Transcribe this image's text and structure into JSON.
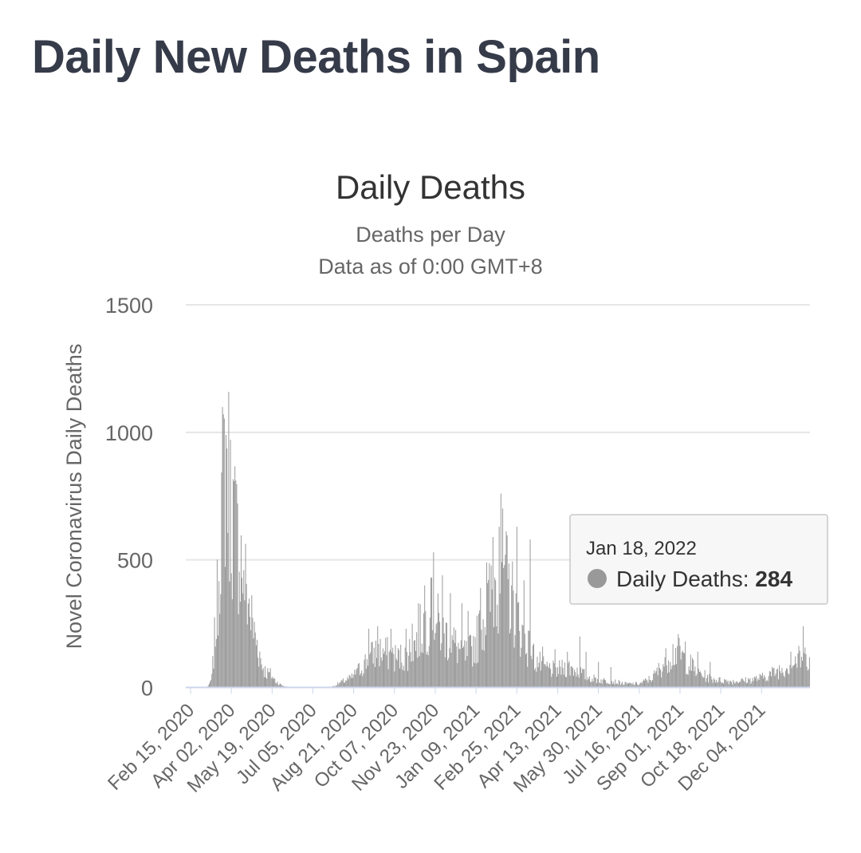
{
  "page": {
    "title": "Daily New Deaths in Spain"
  },
  "colors": {
    "bar": "#999999",
    "grid": "#e6e6e6",
    "baseline": "#cdd6ea",
    "title": "#363b4a",
    "text": "#333333",
    "muted": "#666666"
  },
  "chart_data": {
    "type": "bar",
    "title": "Daily Deaths",
    "subtitle_lines": [
      "Deaths per Day",
      "Data as of 0:00 GMT+8"
    ],
    "ylabel": "Novel Coronavirus Daily Deaths",
    "xlabel": "",
    "ylim": [
      0,
      1500
    ],
    "yticks": [
      "0",
      "500",
      "1000",
      "1500"
    ],
    "grid": true,
    "x_tick_labels": [
      "Feb 15, 2020",
      "Apr 02, 2020",
      "May 19, 2020",
      "Jul 05, 2020",
      "Aug 21, 2020",
      "Oct 07, 2020",
      "Nov 23, 2020",
      "Jan 09, 2021",
      "Feb 25, 2021",
      "Apr 13, 2021",
      "May 30, 2021",
      "Jul 16, 2021",
      "Sep 01, 2021",
      "Oct 18, 2021",
      "Dec 04, 2021"
    ],
    "start_date": "2020-02-15",
    "end_date": "2022-01-18",
    "series": [
      {
        "name": "Daily Deaths",
        "keyframes": [
          [
            "2020-02-15",
            0
          ],
          [
            "2020-03-08",
            0
          ],
          [
            "2020-03-12",
            10
          ],
          [
            "2020-03-15",
            40
          ],
          [
            "2020-03-18",
            190
          ],
          [
            "2020-03-22",
            400
          ],
          [
            "2020-03-25",
            700
          ],
          [
            "2020-03-28",
            850
          ],
          [
            "2020-04-01",
            990
          ],
          [
            "2020-04-04",
            800
          ],
          [
            "2020-04-08",
            700
          ],
          [
            "2020-04-12",
            620
          ],
          [
            "2020-04-16",
            560
          ],
          [
            "2020-04-20",
            470
          ],
          [
            "2020-04-24",
            380
          ],
          [
            "2020-04-28",
            300
          ],
          [
            "2020-05-02",
            220
          ],
          [
            "2020-05-06",
            170
          ],
          [
            "2020-05-10",
            100
          ],
          [
            "2020-05-15",
            60
          ],
          [
            "2020-05-20",
            55
          ],
          [
            "2020-05-25",
            30
          ],
          [
            "2020-06-01",
            10
          ],
          [
            "2020-06-10",
            0
          ],
          [
            "2020-07-20",
            0
          ],
          [
            "2020-07-30",
            5
          ],
          [
            "2020-08-10",
            25
          ],
          [
            "2020-08-20",
            40
          ],
          [
            "2020-08-30",
            80
          ],
          [
            "2020-09-08",
            120
          ],
          [
            "2020-09-18",
            150
          ],
          [
            "2020-09-28",
            140
          ],
          [
            "2020-10-10",
            120
          ],
          [
            "2020-10-20",
            130
          ],
          [
            "2020-10-30",
            180
          ],
          [
            "2020-11-08",
            250
          ],
          [
            "2020-11-18",
            300
          ],
          [
            "2020-11-28",
            240
          ],
          [
            "2020-12-08",
            200
          ],
          [
            "2020-12-18",
            160
          ],
          [
            "2020-12-28",
            130
          ],
          [
            "2021-01-08",
            200
          ],
          [
            "2021-01-18",
            310
          ],
          [
            "2021-01-28",
            420
          ],
          [
            "2021-02-05",
            500
          ],
          [
            "2021-02-12",
            420
          ],
          [
            "2021-02-20",
            320
          ],
          [
            "2021-02-28",
            220
          ],
          [
            "2021-03-08",
            160
          ],
          [
            "2021-03-16",
            110
          ],
          [
            "2021-03-26",
            80
          ],
          [
            "2021-04-08",
            70
          ],
          [
            "2021-04-20",
            85
          ],
          [
            "2021-05-01",
            70
          ],
          [
            "2021-05-12",
            45
          ],
          [
            "2021-05-25",
            30
          ],
          [
            "2021-06-10",
            25
          ],
          [
            "2021-06-25",
            15
          ],
          [
            "2021-07-10",
            15
          ],
          [
            "2021-07-25",
            40
          ],
          [
            "2021-08-05",
            90
          ],
          [
            "2021-08-15",
            140
          ],
          [
            "2021-08-22",
            150
          ],
          [
            "2021-09-01",
            110
          ],
          [
            "2021-09-12",
            70
          ],
          [
            "2021-09-25",
            40
          ],
          [
            "2021-10-08",
            30
          ],
          [
            "2021-10-25",
            25
          ],
          [
            "2021-11-10",
            30
          ],
          [
            "2021-11-25",
            40
          ],
          [
            "2021-12-08",
            60
          ],
          [
            "2021-12-20",
            80
          ],
          [
            "2021-12-30",
            100
          ],
          [
            "2022-01-08",
            120
          ],
          [
            "2022-01-18",
            130
          ]
        ],
        "spikes": [
          [
            "2020-03-31",
            990
          ],
          [
            "2020-04-20",
            460
          ],
          [
            "2020-08-25",
            70
          ],
          [
            "2020-09-08",
            230
          ],
          [
            "2020-09-18",
            240
          ],
          [
            "2020-10-03",
            230
          ],
          [
            "2020-10-20",
            230
          ],
          [
            "2020-10-27",
            250
          ],
          [
            "2020-11-03",
            330
          ],
          [
            "2020-11-10",
            400
          ],
          [
            "2020-11-17",
            430
          ],
          [
            "2020-11-20",
            530
          ],
          [
            "2020-11-30",
            440
          ],
          [
            "2020-12-09",
            370
          ],
          [
            "2020-12-22",
            330
          ],
          [
            "2020-12-29",
            300
          ],
          [
            "2021-01-12",
            390
          ],
          [
            "2021-01-19",
            490
          ],
          [
            "2021-01-26",
            590
          ],
          [
            "2021-02-02",
            630
          ],
          [
            "2021-02-04",
            760
          ],
          [
            "2021-02-09",
            520
          ],
          [
            "2021-02-16",
            400
          ],
          [
            "2021-02-22",
            630
          ],
          [
            "2021-03-02",
            420
          ],
          [
            "2021-03-09",
            580
          ],
          [
            "2021-03-23",
            160
          ],
          [
            "2021-04-06",
            150
          ],
          [
            "2021-04-20",
            140
          ],
          [
            "2021-05-04",
            200
          ],
          [
            "2021-05-11",
            140
          ],
          [
            "2021-05-25",
            100
          ],
          [
            "2021-06-08",
            80
          ],
          [
            "2021-08-31",
            180
          ],
          [
            "2021-09-14",
            140
          ],
          [
            "2021-09-28",
            100
          ],
          [
            "2021-12-28",
            140
          ],
          [
            "2022-01-11",
            240
          ],
          [
            "2022-01-14",
            130
          ]
        ]
      }
    ],
    "tooltip": {
      "date": "Jan 18, 2022",
      "series_label": "Daily Deaths:",
      "value": "284"
    }
  }
}
